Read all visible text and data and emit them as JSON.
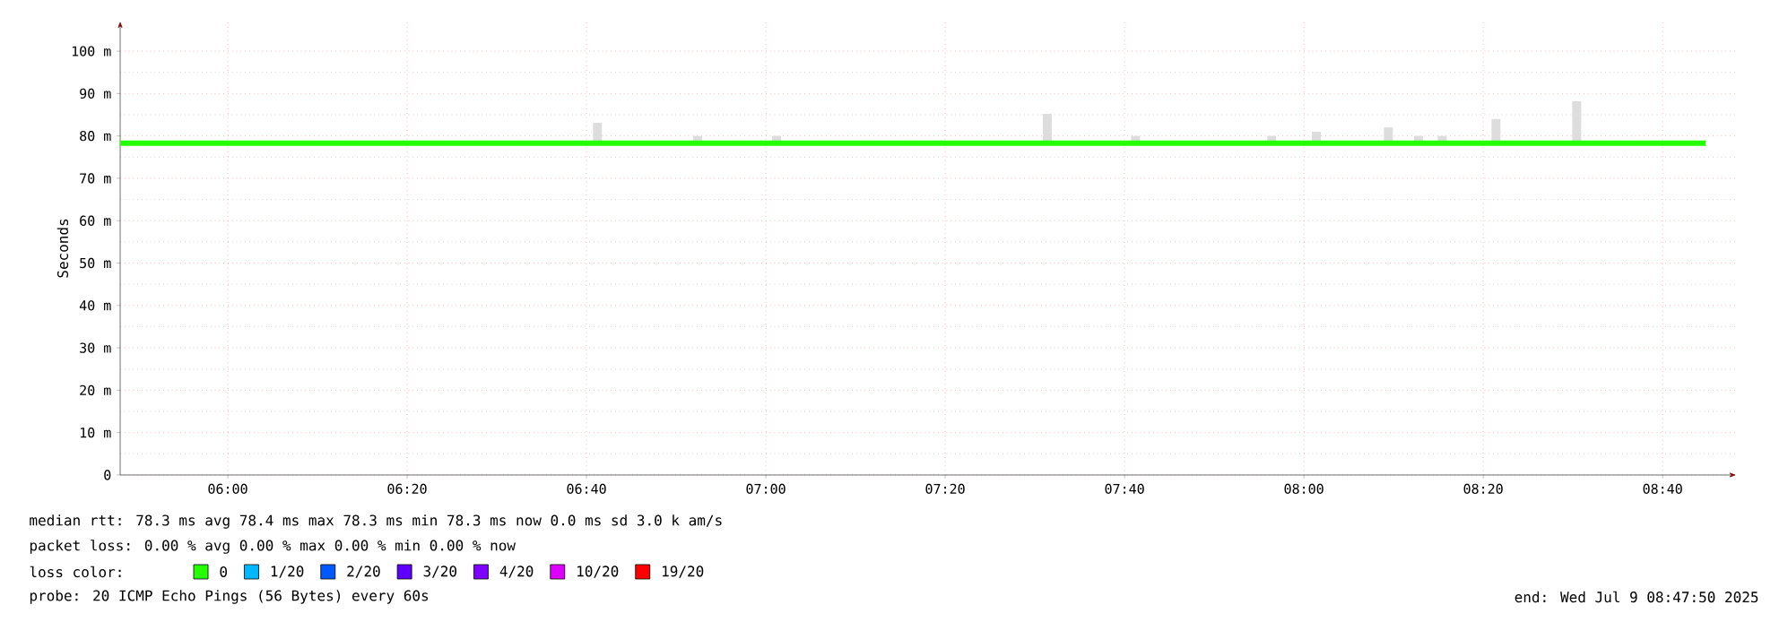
{
  "chart_data": {
    "type": "line",
    "ylabel": "Seconds",
    "legend_title": "loss color:",
    "legend": "bottom",
    "grid": true,
    "xlim": [
      5.8,
      8.803
    ],
    "xticks": [
      {
        "value": 6,
        "label": "06:00"
      },
      {
        "value": 6.3333,
        "label": "06:20"
      },
      {
        "value": 6.6667,
        "label": "06:40"
      },
      {
        "value": 7,
        "label": "07:00"
      },
      {
        "value": 7.3333,
        "label": "07:20"
      },
      {
        "value": 7.6667,
        "label": "07:40"
      },
      {
        "value": 8,
        "label": "08:00"
      },
      {
        "value": 8.3333,
        "label": "08:20"
      },
      {
        "value": 8.6667,
        "label": "08:40"
      }
    ],
    "ylim": [
      0,
      107
    ],
    "yticks": [
      0,
      {
        "value": 10,
        "label": "10 m"
      },
      {
        "value": 20,
        "label": "20 m"
      },
      {
        "value": 30,
        "label": "30 m"
      },
      {
        "value": 40,
        "label": "40 m"
      },
      {
        "value": 50,
        "label": "50 m"
      },
      {
        "value": 60,
        "label": "60 m"
      },
      {
        "value": 70,
        "label": "70 m"
      },
      {
        "value": 80,
        "label": "80 m"
      },
      {
        "value": 90,
        "label": "90 m"
      },
      {
        "value": 100,
        "label": "100 m"
      }
    ],
    "series": [
      {
        "type": "bar",
        "color": "#dddddd",
        "x": [
          6.687,
          6.873,
          7.02,
          7.523,
          7.687,
          7.94,
          8.023,
          8.157,
          8.213,
          8.257,
          8.357,
          8.507
        ],
        "base": [
          78.3,
          78.3,
          78.3,
          78.3,
          78.3,
          78.3,
          78.3,
          78.3,
          78.3,
          78.3,
          78.3,
          78.3
        ],
        "values": [
          4.8,
          1.7,
          1.7,
          6.9,
          1.7,
          1.7,
          2.7,
          3.7,
          1.7,
          1.7,
          5.7,
          9.9
        ]
      },
      {
        "name": "0",
        "color": "#26ff00",
        "x": [
          5.8,
          6.0,
          6.3333,
          6.6667,
          7.0,
          7.3333,
          7.6667,
          8.0,
          8.3333,
          8.6667,
          8.7467
        ],
        "values": [
          78.3,
          78.3,
          78.3,
          78.3,
          78.3,
          78.3,
          78.3,
          78.3,
          78.3,
          78.3,
          78.3
        ]
      },
      {
        "name": "1/20",
        "color": "#00b8ff"
      },
      {
        "name": "2/20",
        "color": "#0059ff"
      },
      {
        "name": "3/20",
        "color": "#5e00ff"
      },
      {
        "name": "4/20",
        "color": "#7e00ff"
      },
      {
        "name": "10/20",
        "color": "#dd00ff"
      },
      {
        "name": "19/20",
        "color": "#ff0000"
      }
    ],
    "annotations": [
      "median rtt:  78.3 ms avg  78.4 ms max  78.3 ms min  78.3 ms now  0.0 ms sd  3.0 k am/s",
      "packet loss: 0.00 % avg  0.00 % max  0.00 % min  0.00 % now",
      "probe:       20 ICMP Echo Pings (56 Bytes) every 60s",
      "end: Wed Jul  9 08:47:50 2025"
    ]
  }
}
